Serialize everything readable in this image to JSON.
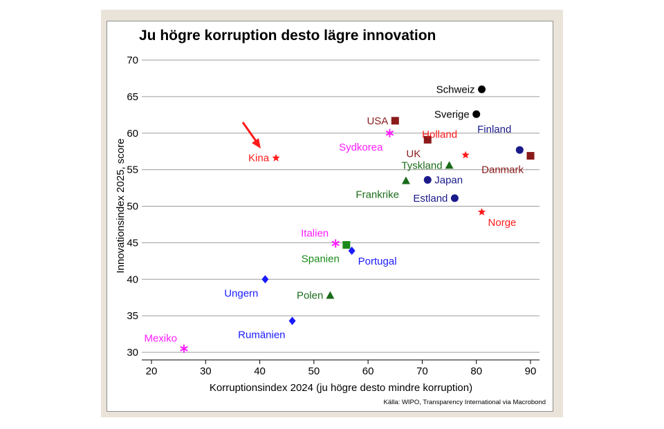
{
  "chart_data": {
    "type": "scatter",
    "title": "Ju högre korruption desto lägre innovation",
    "xlabel": "Korruptionsindex 2024 (ju högre desto mindre korruption)",
    "ylabel": "Innovationsindex 2025, score",
    "xlim": [
      18,
      92
    ],
    "ylim": [
      29,
      71
    ],
    "xticks": [
      20,
      30,
      40,
      50,
      60,
      70,
      80,
      90
    ],
    "yticks": [
      30,
      35,
      40,
      45,
      50,
      55,
      60,
      65,
      70
    ],
    "grid": "horizontal",
    "source": "Källa: WIPO, Transparency International via Macrobond",
    "points": [
      {
        "name": "Schweiz",
        "x": 81,
        "y": 66.0,
        "marker": "circle",
        "color": "#000000",
        "pos": "left"
      },
      {
        "name": "Sverige",
        "x": 80,
        "y": 62.6,
        "marker": "circle",
        "color": "#000000",
        "pos": "left"
      },
      {
        "name": "USA",
        "x": 65,
        "y": 61.7,
        "marker": "square",
        "color": "#8b1a1a",
        "pos": "left"
      },
      {
        "name": "Finland",
        "x": 88,
        "y": 57.7,
        "marker": "circle",
        "color": "#1a1a8b",
        "pos": "above"
      },
      {
        "name": "Danmark",
        "x": 90,
        "y": 56.9,
        "marker": "square",
        "color": "#8b1a1a",
        "pos": "below-left"
      },
      {
        "name": "Sydkorea",
        "x": 64,
        "y": 60.0,
        "marker": "asterisk",
        "color": "#ff1aff",
        "pos": "below-left"
      },
      {
        "name": "UK",
        "x": 71,
        "y": 59.1,
        "marker": "square",
        "color": "#8b1a1a",
        "pos": "below-left"
      },
      {
        "name": "Holland",
        "x": 78,
        "y": 57.0,
        "marker": "star",
        "color": "#ff1a1a",
        "pos": "above"
      },
      {
        "name": "Kina",
        "x": 43,
        "y": 56.6,
        "marker": "star",
        "color": "#ff1a1a",
        "pos": "left"
      },
      {
        "name": "Tyskland",
        "x": 75,
        "y": 55.6,
        "marker": "triangle",
        "color": "#1a6b1a",
        "pos": "left"
      },
      {
        "name": "Frankrike",
        "x": 67,
        "y": 53.5,
        "marker": "triangle",
        "color": "#1a6b1a",
        "pos": "below-left"
      },
      {
        "name": "Japan",
        "x": 71,
        "y": 53.6,
        "marker": "circle",
        "color": "#1a1a8b",
        "pos": "right"
      },
      {
        "name": "Estland",
        "x": 76,
        "y": 51.1,
        "marker": "circle",
        "color": "#1a1a8b",
        "pos": "left"
      },
      {
        "name": "Norge",
        "x": 81,
        "y": 49.2,
        "marker": "star",
        "color": "#ff1a1a",
        "pos": "below-right"
      },
      {
        "name": "Italien",
        "x": 54,
        "y": 44.9,
        "marker": "asterisk",
        "color": "#ff1aff",
        "pos": "above-left"
      },
      {
        "name": "Spanien",
        "x": 56,
        "y": 44.7,
        "marker": "square",
        "color": "#1a8b1a",
        "pos": "below-left"
      },
      {
        "name": "Portugal",
        "x": 57,
        "y": 43.9,
        "marker": "diamond",
        "color": "#1a1aff",
        "pos": "below-right"
      },
      {
        "name": "Ungern",
        "x": 41,
        "y": 40.0,
        "marker": "diamond",
        "color": "#1a1aff",
        "pos": "below-left"
      },
      {
        "name": "Polen",
        "x": 53,
        "y": 37.8,
        "marker": "triangle",
        "color": "#1a6b1a",
        "pos": "left"
      },
      {
        "name": "Rumänien",
        "x": 46,
        "y": 34.3,
        "marker": "diamond",
        "color": "#1a1aff",
        "pos": "below-left"
      },
      {
        "name": "Mexiko",
        "x": 26,
        "y": 30.5,
        "marker": "asterisk",
        "color": "#ff1aff",
        "pos": "above-left"
      }
    ],
    "annotation": {
      "type": "arrow",
      "target": "Kina",
      "color": "#ff1a1a"
    }
  }
}
